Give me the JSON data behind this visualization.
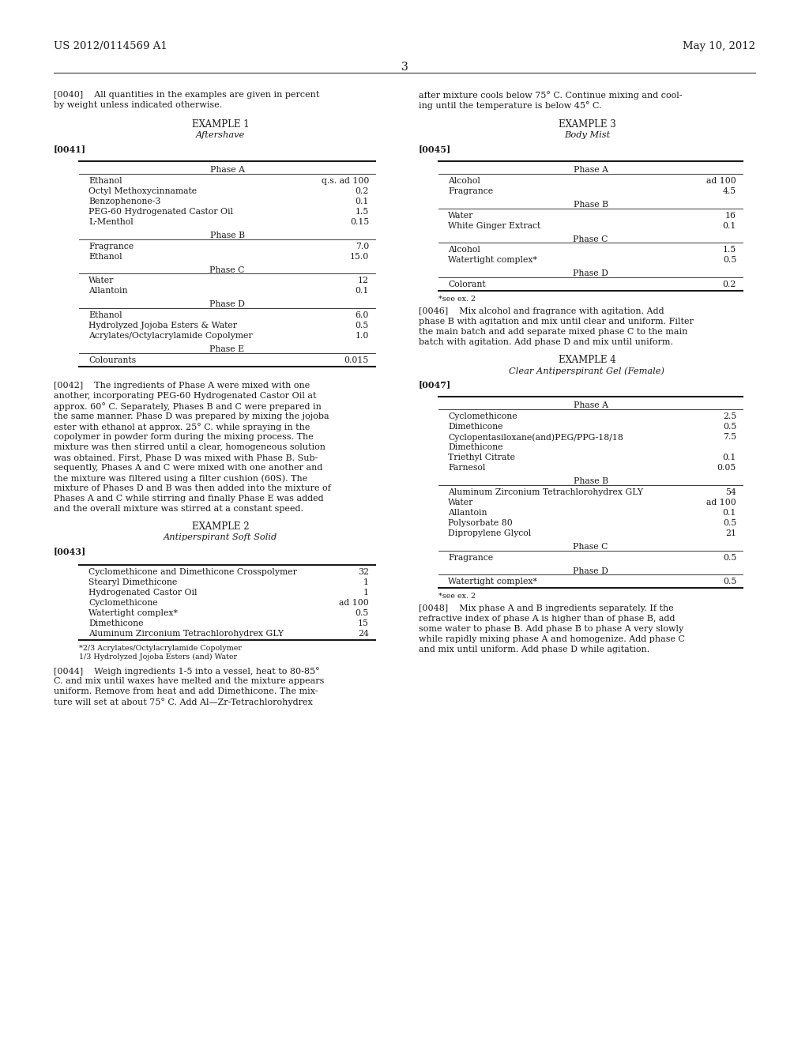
{
  "bg_color": "#ffffff",
  "header_left": "US 2012/0114569 A1",
  "header_right": "May 10, 2012",
  "page_number": "3",
  "para_0040_left": "[0040]    All quantities in the examples are given in percent\nby weight unless indicated otherwise.",
  "para_0040_right": "after mixture cools below 75° C. Continue mixing and cool-\ning until the temperature is below 45° C.",
  "ex1_title": "EXAMPLE 1",
  "ex1_subtitle": "Aftershave",
  "tag_0041": "[0041]",
  "table1_phases": [
    {
      "name": "Phase A",
      "rows": [
        [
          "Ethanol",
          "q.s. ad 100"
        ],
        [
          "Octyl Methoxycinnamate",
          "0.2"
        ],
        [
          "Benzophenone-3",
          "0.1"
        ],
        [
          "PEG-60 Hydrogenated Castor Oil",
          "1.5"
        ],
        [
          "L-Menthol",
          "0.15"
        ]
      ]
    },
    {
      "name": "Phase B",
      "rows": [
        [
          "Fragrance",
          "7.0"
        ],
        [
          "Ethanol",
          "15.0"
        ]
      ]
    },
    {
      "name": "Phase C",
      "rows": [
        [
          "Water",
          "12"
        ],
        [
          "Allantoin",
          "0.1"
        ]
      ]
    },
    {
      "name": "Phase D",
      "rows": [
        [
          "Ethanol",
          "6.0"
        ],
        [
          "Hydrolyzed Jojoba Esters & Water",
          "0.5"
        ],
        [
          "Acrylates/Octylacrylamide Copolymer",
          "1.0"
        ]
      ]
    },
    {
      "name": "Phase E",
      "rows": [
        [
          "Colourants",
          "0.015"
        ]
      ]
    }
  ],
  "para_0042": "[0042]    The ingredients of Phase A were mixed with one\nanother, incorporating PEG-60 Hydrogenated Castor Oil at\napprox. 60° C. Separately, Phases B and C were prepared in\nthe same manner. Phase D was prepared by mixing the jojoba\nester with ethanol at approx. 25° C. while spraying in the\ncopolymer in powder form during the mixing process. The\nmixture was then stirred until a clear, homogeneous solution\nwas obtained. First, Phase D was mixed with Phase B. Sub-\nsequently, Phases A and C were mixed with one another and\nthe mixture was filtered using a filter cushion (60S). The\nmixture of Phases D and B was then added into the mixture of\nPhases A and C while stirring and finally Phase E was added\nand the overall mixture was stirred at a constant speed.",
  "ex2_title": "EXAMPLE 2",
  "ex2_subtitle": "Antiperspirant Soft Solid",
  "tag_0043": "[0043]",
  "table2_rows": [
    [
      "Cyclomethicone and Dimethicone Crosspolymer",
      "32"
    ],
    [
      "Stearyl Dimethicone",
      "1"
    ],
    [
      "Hydrogenated Castor Oil",
      "1"
    ],
    [
      "Cyclomethicone",
      "ad 100"
    ],
    [
      "Watertight complex*",
      "0.5"
    ],
    [
      "Dimethicone",
      "15"
    ],
    [
      "Aluminum Zirconium Tetrachlorohydrex GLY",
      "24"
    ]
  ],
  "table2_footnotes": [
    "*2/3 Acrylates/Octylacrylamide Copolymer",
    "1/3 Hydrolyzed Jojoba Esters (and) Water"
  ],
  "para_0044": "[0044]    Weigh ingredients 1-5 into a vessel, heat to 80-85°\nC. and mix until waxes have melted and the mixture appears\nuniform. Remove from heat and add Dimethicone. The mix-\nture will set at about 75° C. Add Al—Zr-Tetrachlorohydrex",
  "ex3_title": "EXAMPLE 3",
  "ex3_subtitle": "Body Mist",
  "tag_0045": "[0045]",
  "table3_phases": [
    {
      "name": "Phase A",
      "rows": [
        [
          "Alcohol",
          "ad 100"
        ],
        [
          "Fragrance",
          "4.5"
        ]
      ]
    },
    {
      "name": "Phase B",
      "rows": [
        [
          "Water",
          "16"
        ],
        [
          "White Ginger Extract",
          "0.1"
        ]
      ]
    },
    {
      "name": "Phase C",
      "rows": [
        [
          "Alcohol",
          "1.5"
        ],
        [
          "Watertight complex*",
          "0.5"
        ]
      ]
    },
    {
      "name": "Phase D",
      "rows": [
        [
          "Colorant",
          "0.2"
        ]
      ]
    }
  ],
  "table3_footnotes": [
    "*see ex. 2"
  ],
  "para_0046": "[0046]    Mix alcohol and fragrance with agitation. Add\nphase B with agitation and mix until clear and uniform. Filter\nthe main batch and add separate mixed phase C to the main\nbatch with agitation. Add phase D and mix until uniform.",
  "ex4_title": "EXAMPLE 4",
  "ex4_subtitle": "Clear Antiperspirant Gel (Female)",
  "tag_0047": "[0047]",
  "table4_phases": [
    {
      "name": "Phase A",
      "rows": [
        [
          "Cyclomethicone",
          "2.5"
        ],
        [
          "Dimethicone",
          "0.5"
        ],
        [
          "Cyclopentasiloxane(and)PEG/PPG-18/18",
          "7.5"
        ],
        [
          "Dimethicone",
          ""
        ],
        [
          "Triethyl Citrate",
          "0.1"
        ],
        [
          "Farnesol",
          "0.05"
        ]
      ]
    },
    {
      "name": "Phase B",
      "rows": [
        [
          "Aluminum Zirconium Tetrachlorohydrex GLY",
          "54"
        ],
        [
          "Water",
          "ad 100"
        ],
        [
          "Allantoin",
          "0.1"
        ],
        [
          "Polysorbate 80",
          "0.5"
        ],
        [
          "Dipropylene Glycol",
          "21"
        ]
      ]
    },
    {
      "name": "Phase C",
      "rows": [
        [
          "Fragrance",
          "0.5"
        ]
      ]
    },
    {
      "name": "Phase D",
      "rows": [
        [
          "Watertight complex*",
          "0.5"
        ]
      ]
    }
  ],
  "table4_footnotes": [
    "*see ex. 2"
  ],
  "para_0048": "[0048]    Mix phase A and B ingredients separately. If the\nrefractive index of phase A is higher than of phase B, add\nsome water to phase B. Add phase B to phase A very slowly\nwhile rapidly mixing phase A and homogenize. Add phase C\nand mix until uniform. Add phase D while agitation."
}
